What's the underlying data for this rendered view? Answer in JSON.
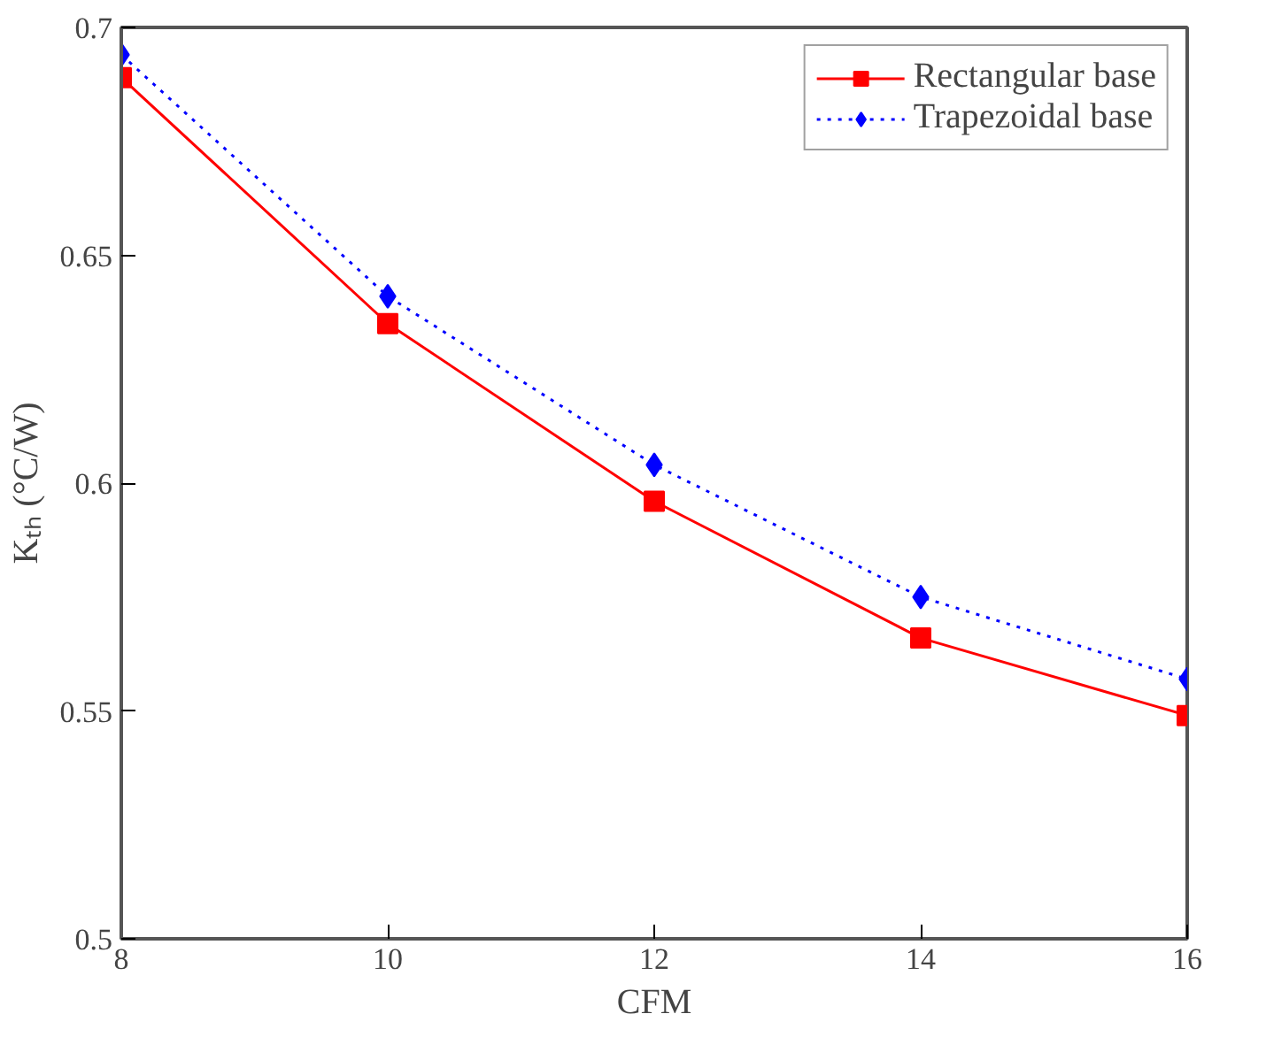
{
  "chart_data": {
    "type": "line",
    "xlabel": "CFM",
    "ylabel": "Kₜₕ (°C/W)",
    "x": [
      8,
      10,
      12,
      14,
      16
    ],
    "series": [
      {
        "name": "Rectangular base",
        "color": "#ff0000",
        "marker": "square",
        "line_style": "solid",
        "values": [
          0.689,
          0.635,
          0.596,
          0.566,
          0.549
        ]
      },
      {
        "name": "Trapezoidal base",
        "color": "#0000ff",
        "marker": "diamond",
        "line_style": "dotted",
        "values": [
          0.694,
          0.641,
          0.604,
          0.575,
          0.557
        ]
      }
    ],
    "xlim": [
      8,
      16
    ],
    "xticks": [
      8,
      10,
      12,
      14,
      16
    ],
    "ylim": [
      0.5,
      0.7
    ],
    "yticks": [
      0.5,
      0.55,
      0.6,
      0.65,
      0.7
    ],
    "grid": false,
    "legend": "top right"
  }
}
